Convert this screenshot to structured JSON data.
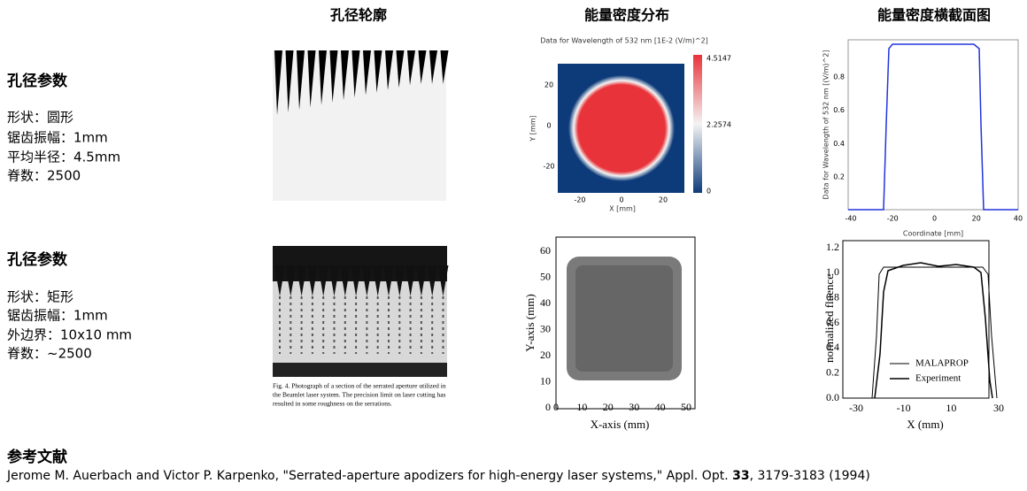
{
  "columns": [
    "孔径轮廓",
    "能量密度分布",
    "能量密度横截面图"
  ],
  "rows": [
    {
      "heading": "孔径参数",
      "params": [
        "形状：圆形",
        "锯齿振幅：1mm",
        "平均半径：4.5mm",
        "脊数：2500"
      ]
    },
    {
      "heading": "孔径参数",
      "params": [
        "形状：矩形",
        "锯齿振幅：1mm",
        "外边界：10x10 mm",
        "脊数：~2500"
      ]
    }
  ],
  "caption": [
    "Fig. 4.   Photograph of a section of the serrated aperture utilized in",
    "the Beamlet laser system.   The precision limit on laser cutting has",
    "resulted in some roughness on the serrations."
  ],
  "plots": {
    "density_sim": {
      "title": "Data for Wavelength of 532 nm  [1E-2 (V/m)^2]",
      "x_label": "X [mm]",
      "y_label": "Y [mm]",
      "xticks": [
        "-20",
        "0",
        "20"
      ],
      "yticks": [
        "20",
        "0",
        "-20"
      ],
      "colorbar_ticks": [
        "4.5147",
        "2.2574",
        "0"
      ]
    },
    "profile_sim": {
      "x_label": "Coordinate [mm]",
      "y_label": "Data for Wavelength of 532 nm [(V/m)^2]",
      "xticks": [
        "-40",
        "-20",
        "0",
        "20",
        "40"
      ],
      "yticks": [
        "0.8",
        "0.6",
        "0.4",
        "0.2"
      ]
    },
    "density_exp": {
      "x_label": "X-axis (mm)",
      "y_label": "Y-axis (mm)",
      "xticks": [
        "0",
        "10",
        "20",
        "30",
        "40",
        "50"
      ],
      "yticks": [
        "60",
        "50",
        "40",
        "30",
        "20",
        "10",
        "0"
      ]
    },
    "profile_exp": {
      "x_label": "X (mm)",
      "y_label": "normalized fluence",
      "xticks": [
        "-30",
        "-10",
        "10",
        "30"
      ],
      "yticks": [
        "1.2",
        "1.0",
        "0.8",
        "0.6",
        "0.4",
        "0.2",
        "0.0"
      ],
      "legend": [
        "MALAPROP",
        "Experiment"
      ]
    }
  },
  "references": {
    "heading": "参考文献",
    "citation": [
      "Jerome M. Auerbach and Victor P. Karpenko, \"Serrated-aperture apodizers for high-energy laser systems,\" Appl. Opt. ",
      "33",
      ", 3179-3183 (1994)"
    ]
  }
}
